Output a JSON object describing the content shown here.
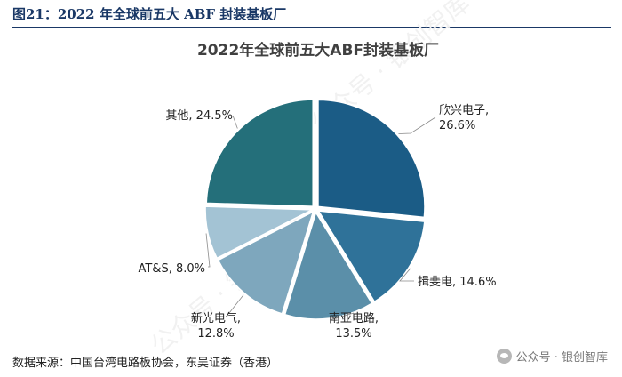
{
  "figure": {
    "title": "图21：2022 年全球前五大 ABF 封装基板厂",
    "source": "数据来源：中国台湾电路板协会，东吴证券（香港）"
  },
  "watermark": {
    "text": "公众号 · 银创智库",
    "icon": "chat-bubble-icon"
  },
  "chart_data": {
    "type": "pie",
    "title": "2022年全球前五大ABF封装基板厂",
    "unit": "%",
    "start": "12 o'clock, clockwise",
    "slices": [
      {
        "name": "欣兴电子",
        "value": 26.6,
        "label_lines": [
          "欣兴电子,",
          "26.6%"
        ],
        "color": "#1b5c86"
      },
      {
        "name": "揖斐电",
        "value": 14.6,
        "label_lines": [
          "揖斐电, 14.6%"
        ],
        "color": "#2f7299"
      },
      {
        "name": "南亚电路",
        "value": 13.5,
        "label_lines": [
          "南亚电路,",
          "13.5%"
        ],
        "color": "#5b8fa9"
      },
      {
        "name": "新光电气",
        "value": 12.8,
        "label_lines": [
          "新光电气,",
          "12.8%"
        ],
        "color": "#7ea7bd"
      },
      {
        "name": "AT&S",
        "value": 8.0,
        "label_lines": [
          "AT&S, 8.0%"
        ],
        "color": "#a3c3d4"
      },
      {
        "name": "其他",
        "value": 24.5,
        "label_lines": [
          "其他, 24.5%"
        ],
        "color": "#246f7a"
      }
    ]
  }
}
